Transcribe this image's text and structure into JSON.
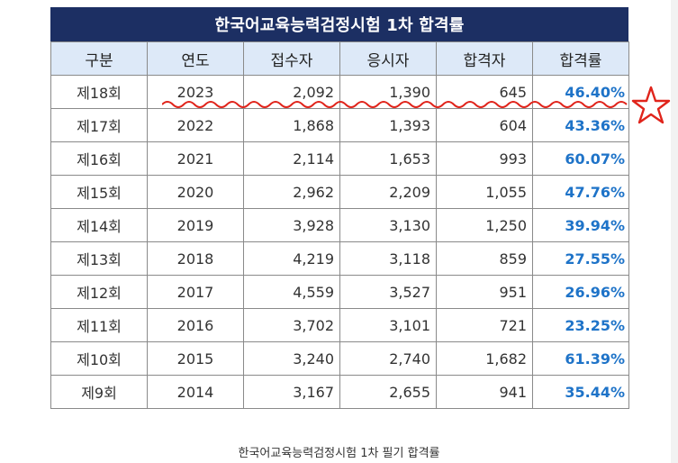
{
  "table": {
    "title": "한국어교육능력검정시험 1차 합격률",
    "headers": [
      "구분",
      "연도",
      "접수자",
      "응시자",
      "합격자",
      "합격률"
    ],
    "rows": [
      {
        "round": "제18회",
        "year": "2023",
        "applicants": "2,092",
        "takers": "1,390",
        "passers": "645",
        "rate": "46.40%"
      },
      {
        "round": "제17회",
        "year": "2022",
        "applicants": "1,868",
        "takers": "1,393",
        "passers": "604",
        "rate": "43.36%"
      },
      {
        "round": "제16회",
        "year": "2021",
        "applicants": "2,114",
        "takers": "1,653",
        "passers": "993",
        "rate": "60.07%"
      },
      {
        "round": "제15회",
        "year": "2020",
        "applicants": "2,962",
        "takers": "2,209",
        "passers": "1,055",
        "rate": "47.76%"
      },
      {
        "round": "제14회",
        "year": "2019",
        "applicants": "3,928",
        "takers": "3,130",
        "passers": "1,250",
        "rate": "39.94%"
      },
      {
        "round": "제13회",
        "year": "2018",
        "applicants": "4,219",
        "takers": "3,118",
        "passers": "859",
        "rate": "27.55%"
      },
      {
        "round": "제12회",
        "year": "2017",
        "applicants": "4,559",
        "takers": "3,527",
        "passers": "951",
        "rate": "26.96%"
      },
      {
        "round": "제11회",
        "year": "2016",
        "applicants": "3,702",
        "takers": "3,101",
        "passers": "721",
        "rate": "23.25%"
      },
      {
        "round": "제10회",
        "year": "2015",
        "applicants": "3,240",
        "takers": "2,740",
        "passers": "1,682",
        "rate": "61.39%"
      },
      {
        "round": "제9회",
        "year": "2014",
        "applicants": "3,167",
        "takers": "2,655",
        "passers": "941",
        "rate": "35.44%"
      }
    ]
  },
  "caption": "한국어교육능력검정시험 1차 필기 합격률",
  "colors": {
    "title_bg": "#1c2f63",
    "header_bg": "#dde9f8",
    "rate_text": "#1e73c8",
    "annotation_red": "#e0241b"
  },
  "annotations": {
    "underline": "wavy-red-underline",
    "star": "star-icon"
  }
}
